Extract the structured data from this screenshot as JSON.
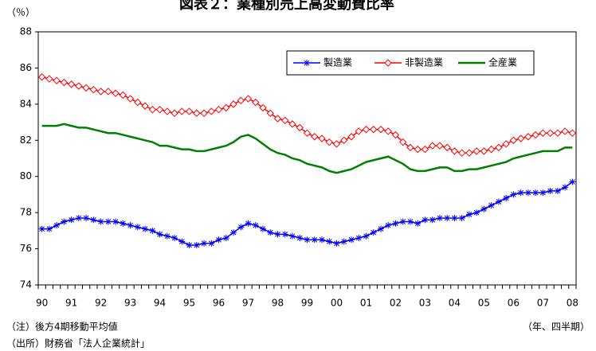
{
  "chart_data": {
    "type": "line",
    "title": "図表２：業種別売上高変動費比率",
    "y_unit": "（％）",
    "x_unit": "（年、四半期）",
    "notes": [
      "（注）後方4期移動平均値",
      "（出所）財務省「法人企業統計」"
    ],
    "categories": [
      "90",
      null,
      null,
      null,
      "91",
      null,
      null,
      null,
      "92",
      null,
      null,
      null,
      "93",
      null,
      null,
      null,
      "94",
      null,
      null,
      null,
      "95",
      null,
      null,
      null,
      "96",
      null,
      null,
      null,
      "97",
      null,
      null,
      null,
      "98",
      null,
      null,
      null,
      "99",
      null,
      null,
      null,
      "00",
      null,
      null,
      null,
      "01",
      null,
      null,
      null,
      "02",
      null,
      null,
      null,
      "03",
      null,
      null,
      null,
      "04",
      null,
      null,
      null,
      "05",
      null,
      null,
      null,
      "06",
      null,
      null,
      null,
      "07",
      null,
      null,
      null,
      "08"
    ],
    "series": [
      {
        "name": "製造業",
        "color": "#0000ff",
        "marker": "asterisk",
        "values": [
          77.1,
          77.1,
          77.3,
          77.5,
          77.6,
          77.7,
          77.7,
          77.6,
          77.5,
          77.5,
          77.5,
          77.4,
          77.3,
          77.2,
          77.1,
          77.0,
          76.8,
          76.7,
          76.6,
          76.4,
          76.2,
          76.2,
          76.3,
          76.3,
          76.5,
          76.6,
          76.9,
          77.2,
          77.4,
          77.3,
          77.1,
          76.9,
          76.8,
          76.8,
          76.7,
          76.6,
          76.5,
          76.5,
          76.5,
          76.4,
          76.3,
          76.4,
          76.5,
          76.6,
          76.7,
          76.9,
          77.1,
          77.3,
          77.4,
          77.5,
          77.5,
          77.4,
          77.6,
          77.6,
          77.7,
          77.7,
          77.7,
          77.7,
          77.9,
          78.0,
          78.2,
          78.4,
          78.6,
          78.8,
          79.0,
          79.1,
          79.1,
          79.1,
          79.1,
          79.2,
          79.2,
          79.4,
          79.7
        ]
      },
      {
        "name": "非製造業",
        "color": "#ff0000",
        "marker": "diamond",
        "values": [
          85.5,
          85.4,
          85.3,
          85.2,
          85.1,
          85.0,
          84.9,
          84.8,
          84.7,
          84.7,
          84.6,
          84.5,
          84.3,
          84.1,
          83.9,
          83.7,
          83.7,
          83.6,
          83.5,
          83.6,
          83.6,
          83.5,
          83.5,
          83.6,
          83.7,
          83.8,
          84.0,
          84.2,
          84.3,
          84.1,
          83.8,
          83.5,
          83.2,
          83.1,
          82.9,
          82.7,
          82.4,
          82.2,
          82.1,
          81.9,
          81.8,
          82.0,
          82.2,
          82.5,
          82.6,
          82.6,
          82.6,
          82.5,
          82.3,
          81.9,
          81.6,
          81.5,
          81.5,
          81.7,
          81.7,
          81.6,
          81.4,
          81.3,
          81.3,
          81.4,
          81.4,
          81.5,
          81.6,
          81.8,
          82.0,
          82.1,
          82.2,
          82.3,
          82.4,
          82.4,
          82.4,
          82.5,
          82.4
        ]
      },
      {
        "name": "全産業",
        "color": "#008000",
        "marker": "none",
        "values": [
          82.8,
          82.8,
          82.8,
          82.9,
          82.8,
          82.7,
          82.7,
          82.6,
          82.5,
          82.4,
          82.4,
          82.3,
          82.2,
          82.1,
          82.0,
          81.9,
          81.7,
          81.7,
          81.6,
          81.5,
          81.5,
          81.4,
          81.4,
          81.5,
          81.6,
          81.7,
          81.9,
          82.2,
          82.3,
          82.1,
          81.8,
          81.5,
          81.3,
          81.2,
          81.0,
          80.9,
          80.7,
          80.6,
          80.5,
          80.3,
          80.2,
          80.3,
          80.4,
          80.6,
          80.8,
          80.9,
          81.0,
          81.1,
          80.9,
          80.7,
          80.4,
          80.3,
          80.3,
          80.4,
          80.5,
          80.5,
          80.3,
          80.3,
          80.4,
          80.4,
          80.5,
          80.6,
          80.7,
          80.8,
          81.0,
          81.1,
          81.2,
          81.3,
          81.4,
          81.4,
          81.4,
          81.6,
          81.6
        ]
      }
    ],
    "ylim": [
      74,
      88
    ],
    "yticks": [
      74,
      76,
      78,
      80,
      82,
      84,
      86,
      88
    ],
    "grid": false,
    "legend": "top-right"
  }
}
